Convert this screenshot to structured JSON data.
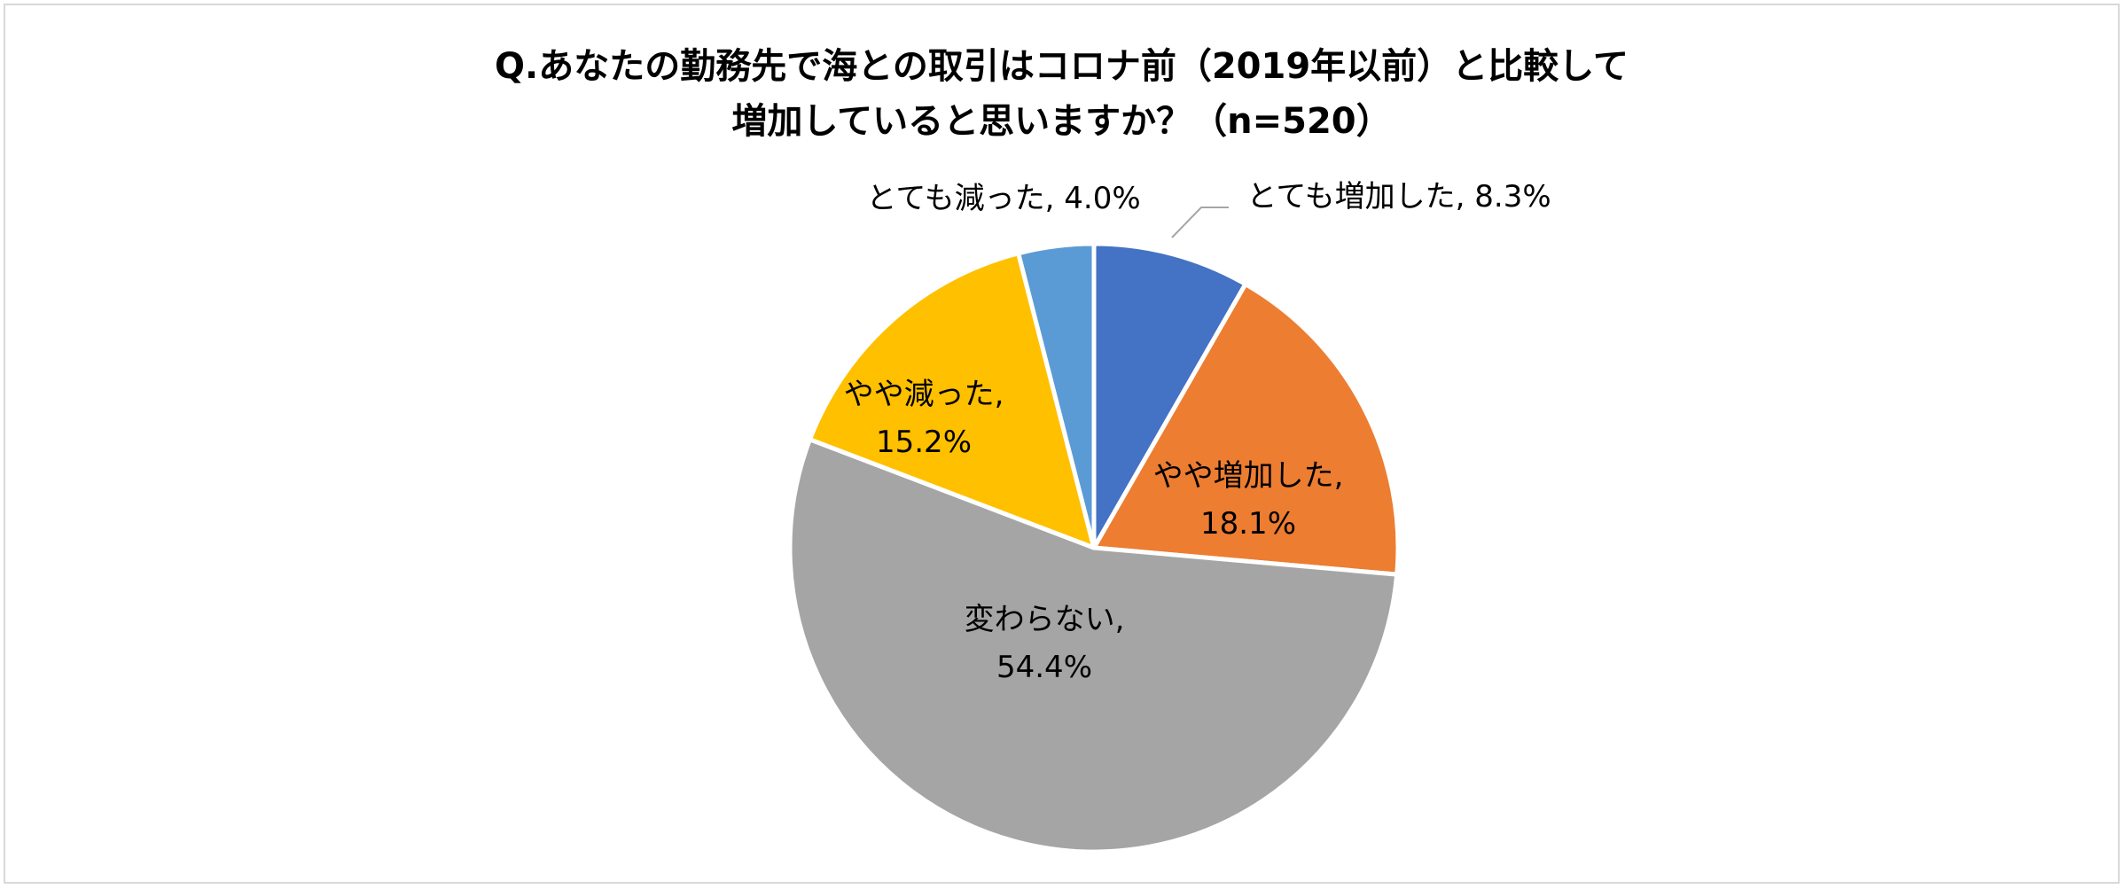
{
  "chart_data": {
    "type": "pie",
    "title_lines": [
      "Q.あなたの勤務先で海との取引はコロナ前（2019年以前）と比較して",
      "増加していると思いますか？（n=520）"
    ],
    "slices": [
      {
        "label": "とても増加した",
        "value": 8.3,
        "display": "8.3%",
        "color": "#4472c4"
      },
      {
        "label": "やや増加した",
        "value": 18.1,
        "display": "18.1%",
        "color": "#ed7d31"
      },
      {
        "label": "変わらない",
        "value": 54.4,
        "display": "54.4%",
        "color": "#a5a5a5"
      },
      {
        "label": "やや減った",
        "value": 15.2,
        "display": "15.2%",
        "color": "#ffc000"
      },
      {
        "label": "とても減った",
        "value": 4.0,
        "display": "4.0%",
        "color": "#5b9bd5"
      }
    ],
    "start_angle": "12 o'clock",
    "direction": "clockwise",
    "legend": "none"
  }
}
